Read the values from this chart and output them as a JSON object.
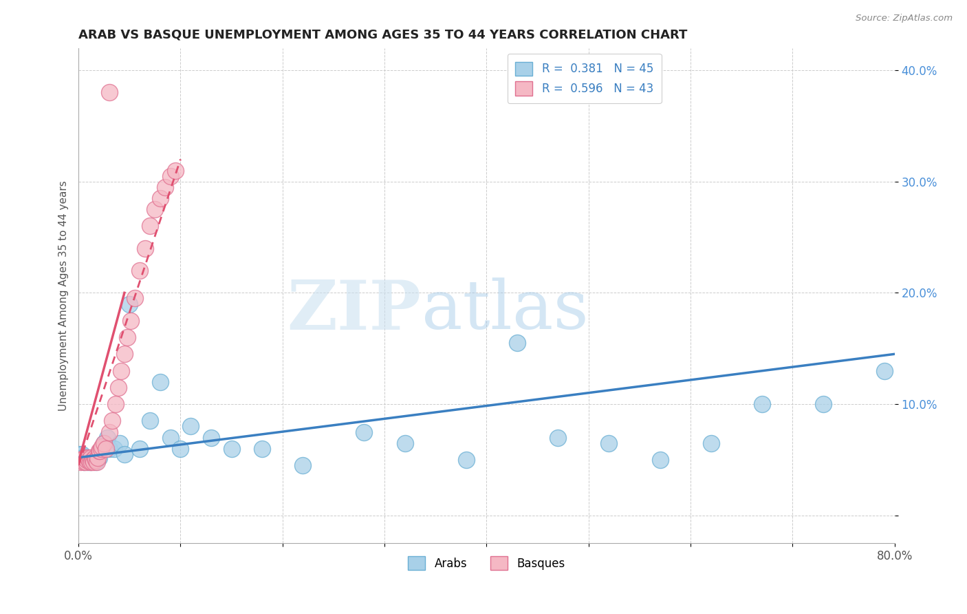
{
  "title": "ARAB VS BASQUE UNEMPLOYMENT AMONG AGES 35 TO 44 YEARS CORRELATION CHART",
  "source": "Source: ZipAtlas.com",
  "ylabel": "Unemployment Among Ages 35 to 44 years",
  "xlim": [
    0,
    0.8
  ],
  "ylim": [
    -0.025,
    0.42
  ],
  "xticks": [
    0.0,
    0.1,
    0.2,
    0.3,
    0.4,
    0.5,
    0.6,
    0.7,
    0.8
  ],
  "yticks": [
    0.0,
    0.1,
    0.2,
    0.3,
    0.4
  ],
  "arab_color": "#a8d0e8",
  "arab_edge": "#6aafd4",
  "basque_color": "#f5b8c4",
  "basque_edge": "#e07090",
  "trend_arab_color": "#3a7fc1",
  "trend_basque_color": "#e05070",
  "watermark_zip": "ZIP",
  "watermark_atlas": "atlas",
  "legend_arab": "R =  0.381   N = 45",
  "legend_basque": "R =  0.596   N = 43",
  "arab_x": [
    0.001,
    0.002,
    0.003,
    0.004,
    0.005,
    0.006,
    0.007,
    0.008,
    0.009,
    0.01,
    0.011,
    0.012,
    0.013,
    0.015,
    0.017,
    0.02,
    0.022,
    0.025,
    0.028,
    0.03,
    0.035,
    0.04,
    0.045,
    0.05,
    0.06,
    0.07,
    0.08,
    0.09,
    0.1,
    0.11,
    0.13,
    0.15,
    0.18,
    0.22,
    0.28,
    0.32,
    0.38,
    0.43,
    0.47,
    0.52,
    0.57,
    0.62,
    0.67,
    0.73,
    0.79
  ],
  "arab_y": [
    0.055,
    0.05,
    0.055,
    0.052,
    0.048,
    0.05,
    0.052,
    0.05,
    0.048,
    0.052,
    0.05,
    0.048,
    0.052,
    0.05,
    0.048,
    0.052,
    0.06,
    0.065,
    0.07,
    0.06,
    0.06,
    0.065,
    0.055,
    0.19,
    0.06,
    0.085,
    0.12,
    0.07,
    0.06,
    0.08,
    0.07,
    0.06,
    0.06,
    0.045,
    0.075,
    0.065,
    0.05,
    0.155,
    0.07,
    0.065,
    0.05,
    0.065,
    0.1,
    0.1,
    0.13
  ],
  "basque_x": [
    0.001,
    0.002,
    0.003,
    0.004,
    0.005,
    0.006,
    0.007,
    0.008,
    0.009,
    0.01,
    0.011,
    0.012,
    0.013,
    0.014,
    0.015,
    0.016,
    0.017,
    0.018,
    0.019,
    0.02,
    0.021,
    0.022,
    0.023,
    0.025,
    0.027,
    0.03,
    0.033,
    0.036,
    0.039,
    0.042,
    0.045,
    0.048,
    0.051,
    0.055,
    0.06,
    0.065,
    0.07,
    0.075,
    0.08,
    0.085,
    0.09,
    0.095,
    0.03
  ],
  "basque_y": [
    0.05,
    0.048,
    0.05,
    0.05,
    0.048,
    0.052,
    0.048,
    0.05,
    0.052,
    0.05,
    0.048,
    0.052,
    0.048,
    0.05,
    0.048,
    0.052,
    0.05,
    0.048,
    0.052,
    0.058,
    0.058,
    0.06,
    0.062,
    0.065,
    0.06,
    0.075,
    0.085,
    0.1,
    0.115,
    0.13,
    0.145,
    0.16,
    0.175,
    0.195,
    0.22,
    0.24,
    0.26,
    0.275,
    0.285,
    0.295,
    0.305,
    0.31,
    0.38
  ],
  "basque_trend_x0": 0.0,
  "basque_trend_y0": 0.045,
  "basque_trend_x1": 0.1,
  "basque_trend_y1": 0.32,
  "arab_trend_x0": 0.0,
  "arab_trend_y0": 0.052,
  "arab_trend_x1": 0.8,
  "arab_trend_y1": 0.145
}
